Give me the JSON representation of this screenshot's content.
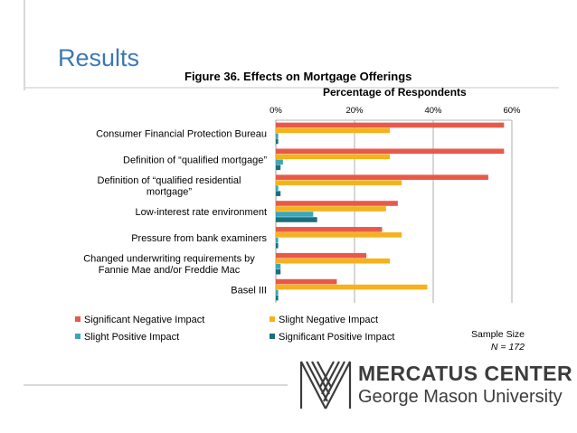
{
  "slide": {
    "title": "Results",
    "sample_size_label": "Sample Size",
    "sample_size_value": "N = 172",
    "logo_line1": "MERCATUS CENTER",
    "logo_line2": "George Mason University"
  },
  "colors": {
    "slide_title": "#3c78b4",
    "significant_negative": "#e8594a",
    "slight_negative": "#f5b21c",
    "slight_positive": "#3aa6b9",
    "significant_positive": "#1b6f7c"
  },
  "chart_data": {
    "type": "bar",
    "orientation": "horizontal",
    "title": "Figure 36. Effects on Mortgage Offerings",
    "xlabel": "Percentage of Respondents",
    "xlim": [
      0,
      60
    ],
    "xticks": [
      "0%",
      "20%",
      "40%",
      "60%"
    ],
    "grid": true,
    "legend_position": "bottom",
    "categories": [
      [
        "Consumer Financial Protection Bureau"
      ],
      [
        "Definition of “qualified mortgage”"
      ],
      [
        "Definition of “qualified residential",
        "mortgage”"
      ],
      [
        "Low-interest rate environment"
      ],
      [
        "Pressure from bank examiners"
      ],
      [
        "Changed underwriting requirements by",
        "Fannie Mae and/or Freddie Mac"
      ],
      [
        "Basel III"
      ]
    ],
    "series": [
      {
        "name": "Significant Negative Impact",
        "color": "#e8594a",
        "values": [
          58,
          58,
          54,
          31,
          27,
          23,
          15.5
        ]
      },
      {
        "name": "Slight Negative Impact",
        "color": "#f5b21c",
        "values": [
          29,
          29,
          32,
          28,
          32,
          29,
          38.5
        ]
      },
      {
        "name": "Slight Positive Impact",
        "color": "#3aa6b9",
        "values": [
          0.6,
          1.8,
          0.6,
          9.5,
          0.6,
          1.2,
          0.6
        ]
      },
      {
        "name": "Significant Positive Impact",
        "color": "#1b6f7c",
        "values": [
          0.6,
          1.2,
          1.2,
          10.5,
          0.6,
          1.2,
          0.6
        ]
      }
    ]
  }
}
